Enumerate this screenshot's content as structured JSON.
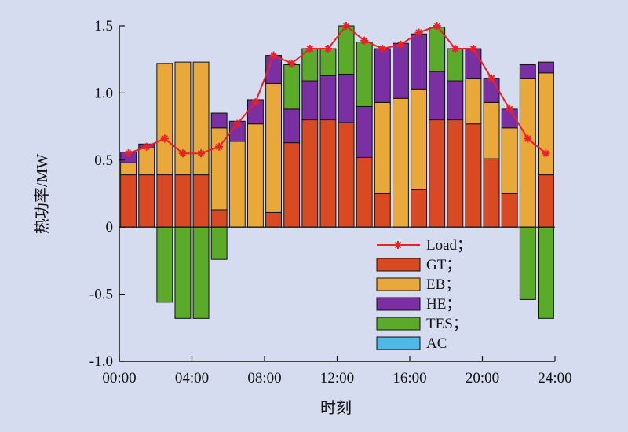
{
  "chart_data": {
    "type": "bar",
    "stacked": true,
    "xlabel": "时刻",
    "ylabel": "热功率/MW",
    "ylim": [
      -1.0,
      1.5
    ],
    "yticks": [
      "1.5",
      "1.0",
      "0.5",
      "0",
      "-0.5",
      "-1.0"
    ],
    "ytick_values": [
      1.5,
      1.0,
      0.5,
      0,
      -0.5,
      -1.0
    ],
    "xticks": [
      "00:00",
      "04:00",
      "08:00",
      "12:00",
      "16:00",
      "20:00",
      "24:00"
    ],
    "xtick_hours": [
      0,
      4,
      8,
      12,
      16,
      20,
      24
    ],
    "hours": [
      0,
      1,
      2,
      3,
      4,
      5,
      6,
      7,
      8,
      9,
      10,
      11,
      12,
      13,
      14,
      15,
      16,
      17,
      18,
      19,
      20,
      21,
      22,
      23
    ],
    "grid": false,
    "legend_position": "bottom-right",
    "series": [
      {
        "name": "GT；",
        "color": "#d94a22",
        "values": [
          0.39,
          0.39,
          0.39,
          0.39,
          0.39,
          0.13,
          0,
          0,
          0.11,
          0.63,
          0.8,
          0.8,
          0.78,
          0.52,
          0.25,
          0,
          0.28,
          0.8,
          0.8,
          0.77,
          0.51,
          0.25,
          0,
          0.39
        ]
      },
      {
        "name": "EB；",
        "color": "#e9a83a",
        "values": [
          0.09,
          0.2,
          0.83,
          0.84,
          0.84,
          0.61,
          0.64,
          0.77,
          0.96,
          0,
          0,
          0,
          0,
          0,
          0.68,
          0.96,
          0.75,
          0,
          0,
          0.34,
          0.42,
          0.49,
          1.11,
          0.76
        ]
      },
      {
        "name": "HE；",
        "color": "#7a2fa2",
        "values": [
          0.08,
          0.03,
          0,
          0,
          0,
          0.11,
          0.15,
          0.18,
          0.21,
          0.25,
          0.29,
          0.33,
          0.36,
          0.38,
          0.4,
          0.41,
          0.41,
          0.36,
          0.29,
          0.22,
          0.18,
          0.14,
          0.1,
          0.08
        ]
      },
      {
        "name": "TES；",
        "color": "#5caa2a",
        "values": [
          0,
          0,
          -0.56,
          -0.68,
          -0.68,
          -0.24,
          0,
          0,
          0,
          0.33,
          0.24,
          0.2,
          0.36,
          0.48,
          0,
          0,
          0,
          0.33,
          0.24,
          0,
          0,
          0,
          -0.54,
          -0.68
        ]
      },
      {
        "name": "AC",
        "color": "#4eb8e6",
        "values": [
          0,
          0,
          0,
          0,
          0,
          0,
          0,
          0,
          0,
          0,
          0,
          0,
          0,
          0,
          0,
          0,
          0,
          0,
          0,
          0,
          0,
          0,
          0,
          0
        ]
      }
    ],
    "line_series": {
      "name": "Load；",
      "color": "#e8202a",
      "values": [
        0.55,
        0.6,
        0.66,
        0.55,
        0.55,
        0.6,
        0.77,
        0.93,
        1.28,
        1.22,
        1.33,
        1.33,
        1.5,
        1.39,
        1.33,
        1.36,
        1.45,
        1.5,
        1.33,
        1.33,
        1.11,
        0.88,
        0.66,
        0.55
      ]
    }
  }
}
